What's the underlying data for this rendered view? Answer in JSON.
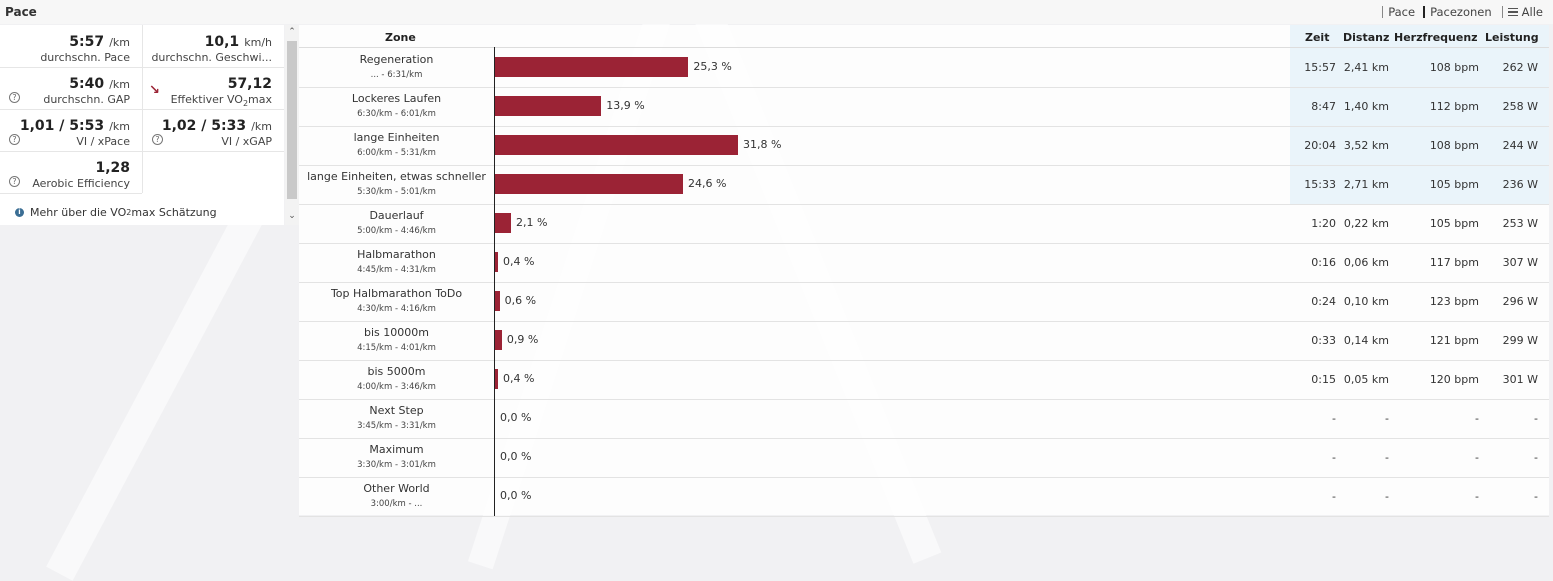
{
  "header": {
    "title": "Pace"
  },
  "nav": {
    "pace": "Pace",
    "pacezonen": "Pacezonen",
    "alle": "Alle"
  },
  "stats": {
    "avg_pace": {
      "value": "5:57",
      "unit": "/km",
      "label": "durchschn. Pace"
    },
    "avg_speed": {
      "value": "10,1",
      "unit": "km/h",
      "label": "durchschn. Geschwi..."
    },
    "avg_gap": {
      "value": "5:40",
      "unit": "/km",
      "label": "durchschn. GAP"
    },
    "vo2max": {
      "value": "57,12",
      "label": "Effektiver VO",
      "sub": "2",
      "label_end": "max"
    },
    "vi_xpace": {
      "value": "1,01 / 5:53",
      "unit": "/km",
      "label": "VI / xPace"
    },
    "vi_xgap": {
      "value": "1,02 / 5:33",
      "unit": "/km",
      "label": "VI / xGAP"
    },
    "aerobic": {
      "value": "1,28",
      "label": "Aerobic Efficiency"
    },
    "help_icon": "question-circle-icon"
  },
  "more_link": {
    "text": "Mehr über die VO",
    "sub": "2",
    "text_end": "max Schätzung"
  },
  "table": {
    "headers": {
      "zone": "Zone",
      "zeit": "Zeit",
      "distanz": "Distanz",
      "hf": "Herzfrequenz",
      "leistung": "Leistung"
    },
    "bar_color": "#9b2335",
    "rows": [
      {
        "name": "Regeneration",
        "range": "... - 6:31/km",
        "pct_value": 25.3,
        "pct": "25,3 %",
        "zeit": "15:57",
        "dist": "2,41 km",
        "hf": "108 bpm",
        "power": "262 W"
      },
      {
        "name": "Lockeres Laufen",
        "range": "6:30/km - 6:01/km",
        "pct_value": 13.9,
        "pct": "13,9 %",
        "zeit": "8:47",
        "dist": "1,40 km",
        "hf": "112 bpm",
        "power": "258 W"
      },
      {
        "name": "lange Einheiten",
        "range": "6:00/km - 5:31/km",
        "pct_value": 31.8,
        "pct": "31,8 %",
        "zeit": "20:04",
        "dist": "3,52 km",
        "hf": "108 bpm",
        "power": "244 W"
      },
      {
        "name": "lange Einheiten, etwas schneller",
        "range": "5:30/km - 5:01/km",
        "pct_value": 24.6,
        "pct": "24,6 %",
        "zeit": "15:33",
        "dist": "2,71 km",
        "hf": "105 bpm",
        "power": "236 W"
      },
      {
        "name": "Dauerlauf",
        "range": "5:00/km - 4:46/km",
        "pct_value": 2.1,
        "pct": "2,1 %",
        "zeit": "1:20",
        "dist": "0,22 km",
        "hf": "105 bpm",
        "power": "253 W"
      },
      {
        "name": "Halbmarathon",
        "range": "4:45/km - 4:31/km",
        "pct_value": 0.4,
        "pct": "0,4 %",
        "zeit": "0:16",
        "dist": "0,06 km",
        "hf": "117 bpm",
        "power": "307 W"
      },
      {
        "name": "Top Halbmarathon ToDo",
        "range": "4:30/km - 4:16/km",
        "pct_value": 0.6,
        "pct": "0,6 %",
        "zeit": "0:24",
        "dist": "0,10 km",
        "hf": "123 bpm",
        "power": "296 W"
      },
      {
        "name": "bis 10000m",
        "range": "4:15/km - 4:01/km",
        "pct_value": 0.9,
        "pct": "0,9 %",
        "zeit": "0:33",
        "dist": "0,14 km",
        "hf": "121 bpm",
        "power": "299 W"
      },
      {
        "name": "bis 5000m",
        "range": "4:00/km - 3:46/km",
        "pct_value": 0.4,
        "pct": "0,4 %",
        "zeit": "0:15",
        "dist": "0,05 km",
        "hf": "120 bpm",
        "power": "301 W"
      },
      {
        "name": "Next Step",
        "range": "3:45/km - 3:31/km",
        "pct_value": 0,
        "pct": "0,0 %",
        "zeit": "-",
        "dist": "-",
        "hf": "-",
        "power": "-"
      },
      {
        "name": "Maximum",
        "range": "3:30/km - 3:01/km",
        "pct_value": 0,
        "pct": "0,0 %",
        "zeit": "-",
        "dist": "-",
        "hf": "-",
        "power": "-"
      },
      {
        "name": "Other World",
        "range": "3:00/km - ...",
        "pct_value": 0,
        "pct": "0,0 %",
        "zeit": "-",
        "dist": "-",
        "hf": "-",
        "power": "-"
      }
    ]
  }
}
